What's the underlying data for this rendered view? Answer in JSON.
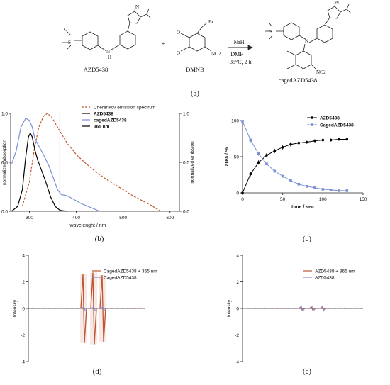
{
  "scheme": {
    "compounds": [
      {
        "label": "AZD5438"
      },
      {
        "label": "DMNB"
      },
      {
        "label": "cagedAZD5438"
      }
    ],
    "plus": "+",
    "substituent_labels": {
      "br": "Br",
      "no2": "NO2",
      "n": "N",
      "nh": "H",
      "o": "O",
      "s": "S"
    },
    "reagent": "NaH",
    "conditions": [
      "DMF",
      "-35°C, 2 h"
    ]
  },
  "panel_labels": {
    "a": "(a)",
    "b": "(b)",
    "c": "(c)",
    "d": "(d)",
    "e": "(e)"
  },
  "chart_data": [
    {
      "type": "line",
      "panel": "b",
      "xlabel": "wavelenght / nm",
      "ylabel_left": "normalized absorption",
      "ylabel_right": "normalized emission",
      "xlim": [
        260,
        620
      ],
      "ylim": [
        0,
        1.0
      ],
      "x_ticks": [
        300,
        400,
        500,
        600
      ],
      "y_ticks_left": [
        "0.0",
        "0.5",
        "1.0"
      ],
      "y_ticks_right": [
        "0.0",
        "0.5",
        "1.0"
      ],
      "legend_position": "top-right",
      "grid": false,
      "colors": {
        "cherenkov": "#c0552f",
        "azd": "#000000",
        "caged": "#7b8fd6",
        "line365": "#000000"
      },
      "series": [
        {
          "name": "Cherenkov emission spectrum",
          "style": "dashed",
          "color": "#c0552f",
          "points": [
            [
              285,
              0.05
            ],
            [
              300,
              0.3
            ],
            [
              310,
              0.62
            ],
            [
              320,
              0.86
            ],
            [
              330,
              0.97
            ],
            [
              338,
              1.0
            ],
            [
              348,
              0.96
            ],
            [
              360,
              0.86
            ],
            [
              380,
              0.7
            ],
            [
              400,
              0.58
            ],
            [
              420,
              0.49
            ],
            [
              440,
              0.41
            ],
            [
              460,
              0.34
            ],
            [
              480,
              0.28
            ],
            [
              500,
              0.22
            ],
            [
              520,
              0.16
            ],
            [
              540,
              0.11
            ],
            [
              560,
              0.06
            ],
            [
              580,
              0.0
            ]
          ]
        },
        {
          "name": "AZD5438",
          "style": "solid",
          "color": "#000000",
          "points": [
            [
              262,
              0.0
            ],
            [
              275,
              0.05
            ],
            [
              285,
              0.22
            ],
            [
              292,
              0.55
            ],
            [
              298,
              0.76
            ],
            [
              302,
              0.8
            ],
            [
              306,
              0.76
            ],
            [
              312,
              0.62
            ],
            [
              318,
              0.52
            ],
            [
              325,
              0.43
            ],
            [
              335,
              0.3
            ],
            [
              345,
              0.15
            ],
            [
              355,
              0.05
            ],
            [
              365,
              0.01
            ],
            [
              380,
              0.0
            ]
          ]
        },
        {
          "name": "cagedAZD5438",
          "style": "solid",
          "color": "#7b8fd6",
          "points": [
            [
              262,
              0.48
            ],
            [
              272,
              0.62
            ],
            [
              282,
              0.86
            ],
            [
              292,
              0.95
            ],
            [
              300,
              0.93
            ],
            [
              306,
              0.86
            ],
            [
              312,
              0.74
            ],
            [
              322,
              0.65
            ],
            [
              332,
              0.56
            ],
            [
              342,
              0.46
            ],
            [
              352,
              0.33
            ],
            [
              360,
              0.22
            ],
            [
              368,
              0.17
            ],
            [
              380,
              0.16
            ],
            [
              395,
              0.12
            ],
            [
              410,
              0.08
            ],
            [
              425,
              0.05
            ],
            [
              440,
              0.02
            ],
            [
              450,
              0.0
            ]
          ]
        },
        {
          "name": "365 nm",
          "style": "vline",
          "color": "#000000",
          "x": 365
        }
      ]
    },
    {
      "type": "scatter",
      "panel": "c",
      "xlabel": "time / sec",
      "ylabel": "area / %",
      "xlim": [
        0,
        150
      ],
      "ylim": [
        0,
        100
      ],
      "x_ticks": [
        0,
        50,
        100,
        150
      ],
      "y_ticks": [
        0,
        50,
        100
      ],
      "legend_position": "top-right",
      "grid": false,
      "series": [
        {
          "name": "AZD5438",
          "color": "#000000",
          "marker": "circle",
          "x": [
            0,
            10,
            20,
            30,
            40,
            50,
            60,
            70,
            80,
            90,
            100,
            110,
            120,
            130
          ],
          "y": [
            0,
            26,
            42,
            52,
            58,
            63,
            67,
            69,
            70,
            72,
            73,
            73,
            74,
            74
          ],
          "err": [
            1,
            3,
            3,
            3,
            3,
            3,
            3,
            3,
            2,
            2,
            2,
            2,
            2,
            2
          ]
        },
        {
          "name": "CagedAZD5438",
          "color": "#7b8fd6",
          "marker": "square",
          "x": [
            0,
            10,
            20,
            30,
            40,
            50,
            60,
            70,
            80,
            90,
            100,
            110,
            120,
            130
          ],
          "y": [
            99,
            73,
            54,
            40,
            30,
            23,
            17,
            12,
            9,
            7,
            5,
            4,
            3,
            3
          ],
          "err": [
            1,
            3,
            3,
            2,
            2,
            2,
            2,
            2,
            1,
            1,
            1,
            1,
            1,
            1
          ]
        }
      ]
    },
    {
      "type": "line",
      "panel": "d",
      "ylabel": "Intensity",
      "ylim": [
        -4,
        4
      ],
      "y_ticks": [
        -4,
        -2,
        0,
        2,
        4
      ],
      "legend_position": "top-right",
      "grid": false,
      "series": [
        {
          "name": "CagedAZD5438 + 365 nm",
          "color": "#c0552f",
          "peak_amplitudes": [
            2.6,
            2.7,
            2.5
          ]
        },
        {
          "name": "CagedAZD5438",
          "color": "#7b8fd6",
          "peak_amplitudes": [
            0.15,
            0.15,
            0.15
          ]
        }
      ]
    },
    {
      "type": "line",
      "panel": "e",
      "ylabel": "Intensity",
      "ylim": [
        -4,
        4
      ],
      "y_ticks": [
        -4,
        -2,
        0,
        2,
        4
      ],
      "legend_position": "top-right",
      "grid": false,
      "series": [
        {
          "name": "AZD5438 + 365 nm",
          "color": "#c0552f",
          "peak_amplitudes": [
            0.1,
            0.1,
            0.1
          ]
        },
        {
          "name": "AZD5438",
          "color": "#7b8fd6",
          "peak_amplitudes": [
            0.2,
            0.2,
            0.2
          ]
        }
      ]
    }
  ]
}
